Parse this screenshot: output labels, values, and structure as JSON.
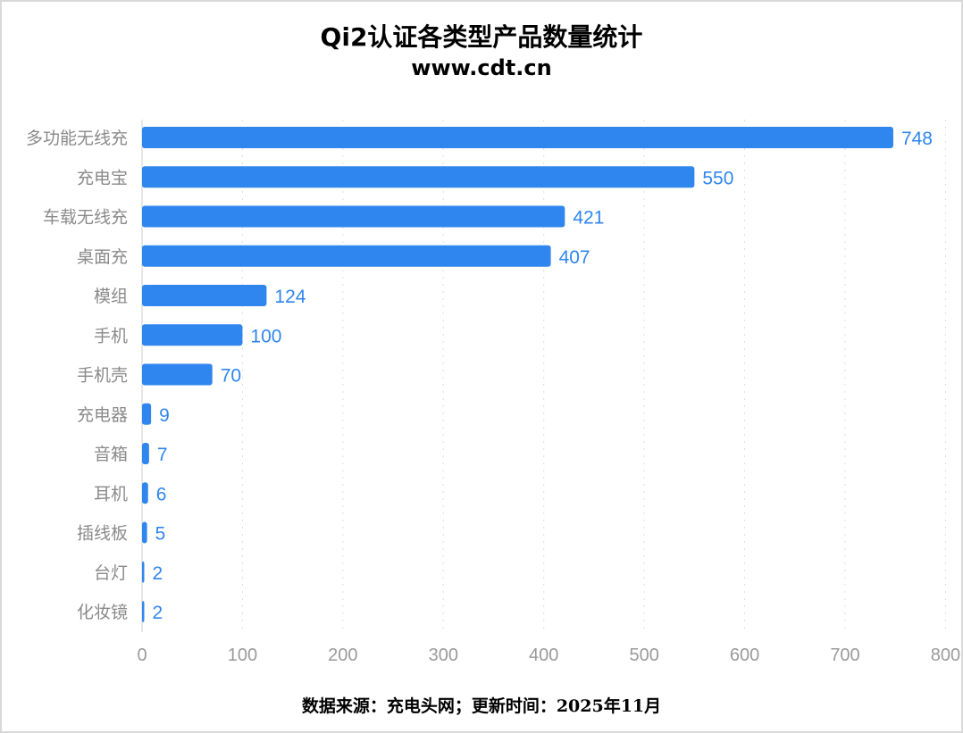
{
  "chart_data": {
    "type": "bar",
    "orientation": "horizontal",
    "title": "Qi2认证各类型产品数量统计",
    "subtitle": "www.cdt.cn",
    "source": "数据来源：充电头网；更新时间：2025年11月",
    "categories": [
      "多功能无线充",
      "充电宝",
      "车载无线充",
      "桌面充",
      "模组",
      "手机",
      "手机壳",
      "充电器",
      "音箱",
      "耳机",
      "插线板",
      "台灯",
      "化妆镜"
    ],
    "values": [
      748,
      550,
      421,
      407,
      124,
      100,
      70,
      9,
      7,
      6,
      5,
      2,
      2
    ],
    "xlim": [
      0,
      800
    ],
    "xticks": [
      "0",
      "100",
      "200",
      "300",
      "400",
      "500",
      "600",
      "700",
      "800"
    ],
    "grid": "vertical dotted",
    "data_labels": true,
    "bar_color": "#2f86ee"
  }
}
